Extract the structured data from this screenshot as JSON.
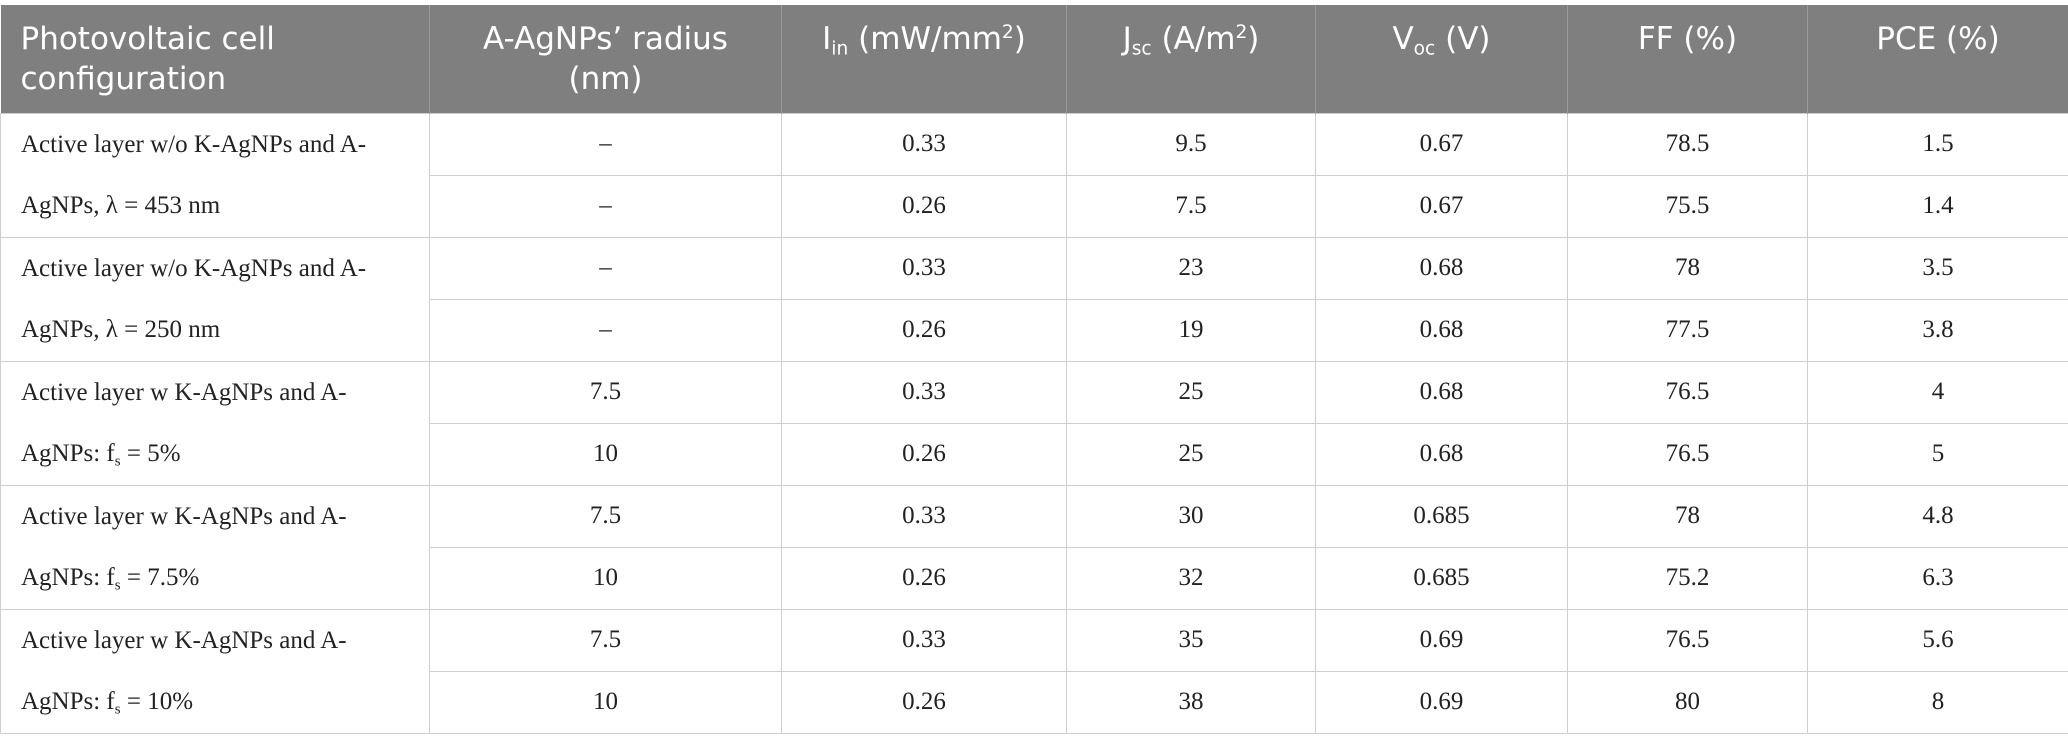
{
  "table": {
    "header": [
      [
        {
          "text": "Photovoltaic cell configuration"
        }
      ],
      [
        {
          "text": "A-AgNPs’ radius (nm)"
        }
      ],
      [
        {
          "text": "I"
        },
        {
          "sub": "in"
        },
        {
          "text": " (mW/mm"
        },
        {
          "sup": "2"
        },
        {
          "text": ")"
        }
      ],
      [
        {
          "text": "J"
        },
        {
          "sub": "sc"
        },
        {
          "text": " (A/m"
        },
        {
          "sup": "2"
        },
        {
          "text": ")"
        }
      ],
      [
        {
          "text": "V"
        },
        {
          "sub": "oc"
        },
        {
          "text": " (V)"
        }
      ],
      [
        {
          "text": "FF (%)"
        }
      ],
      [
        {
          "text": "PCE (%)"
        }
      ]
    ],
    "groups": [
      {
        "label": [
          {
            "text": "Active layer w/o K-AgNPs and A-AgNPs, λ = 453 nm"
          }
        ],
        "rows": [
          [
            "–",
            0.33,
            9.5,
            0.67,
            78.5,
            1.5
          ],
          [
            "–",
            0.26,
            7.5,
            0.67,
            75.5,
            1.4
          ]
        ]
      },
      {
        "label": [
          {
            "text": "Active layer w/o K-AgNPs and A-AgNPs, λ = 250 nm"
          }
        ],
        "rows": [
          [
            "–",
            0.33,
            23,
            0.68,
            78,
            3.5
          ],
          [
            "–",
            0.26,
            19,
            0.68,
            77.5,
            3.8
          ]
        ]
      },
      {
        "label": [
          {
            "text": "Active layer w K-AgNPs and A-AgNPs: f"
          },
          {
            "sub": "s"
          },
          {
            "text": " = 5%"
          }
        ],
        "rows": [
          [
            7.5,
            0.33,
            25,
            0.68,
            76.5,
            4
          ],
          [
            10,
            0.26,
            25,
            0.68,
            76.5,
            5
          ]
        ]
      },
      {
        "label": [
          {
            "text": "Active layer w K-AgNPs and A-AgNPs: f"
          },
          {
            "sub": "s"
          },
          {
            "text": " = 7.5%"
          }
        ],
        "rows": [
          [
            7.5,
            0.33,
            30,
            0.685,
            78,
            4.8
          ],
          [
            10,
            0.26,
            32,
            0.685,
            75.2,
            6.3
          ]
        ]
      },
      {
        "label": [
          {
            "text": "Active layer w K-AgNPs and A-AgNPs: f"
          },
          {
            "sub": "s"
          },
          {
            "text": " = 10%"
          }
        ],
        "rows": [
          [
            7.5,
            0.33,
            35,
            0.69,
            76.5,
            5.6
          ],
          [
            10,
            0.26,
            38,
            0.69,
            80,
            8
          ]
        ]
      }
    ]
  }
}
